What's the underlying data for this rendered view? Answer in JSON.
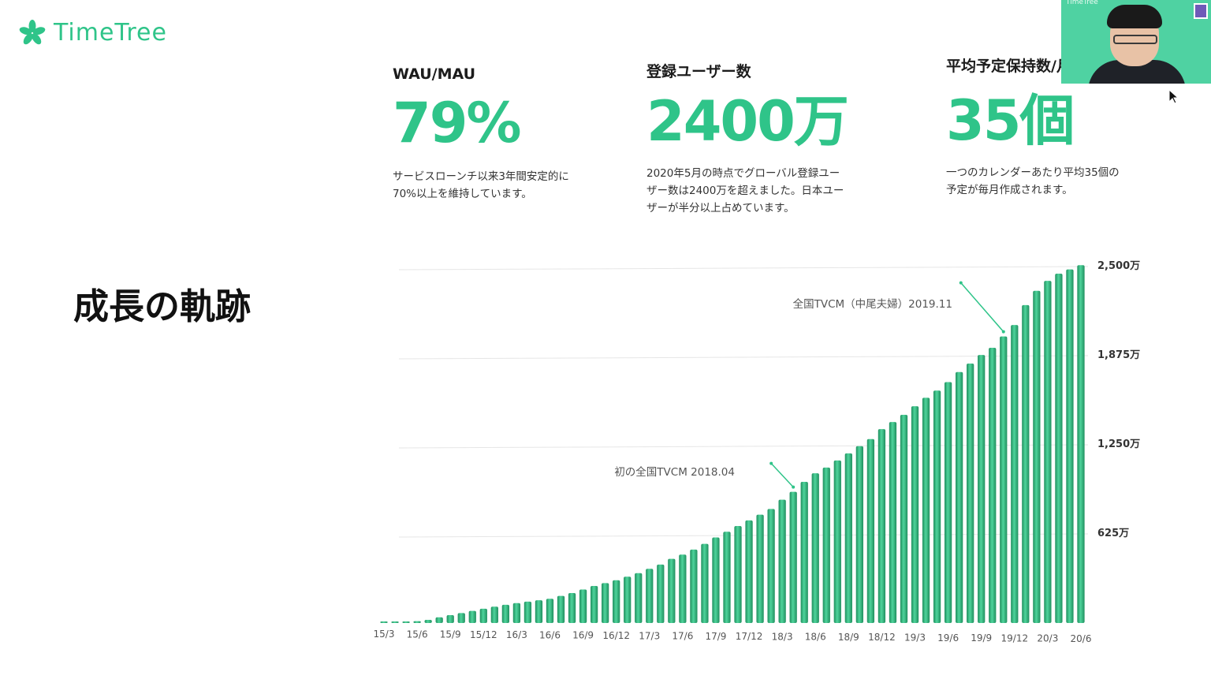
{
  "brand": {
    "logo_text": "TimeTree",
    "webcam_brand": "TimeTree"
  },
  "colors": {
    "accent": "#2fc489",
    "bar": "#2fbd82",
    "bar_dark": "#1f8f5e"
  },
  "stats": [
    {
      "label": "WAU/MAU",
      "value": "79%",
      "desc": "サービスローンチ以来3年間安定的に\n70%以上を維持しています。"
    },
    {
      "label": "登録ユーザー数",
      "value": "2400万",
      "desc": "2020年5月の時点でグローバル登録ユー\nザー数は2400万を超えました。日本ユー\nザーが半分以上占めています。"
    },
    {
      "label": "平均予定保持数/月",
      "value": "35個",
      "desc": "一つのカレンダーあたり平均35個の\n予定が毎月作成されます。"
    }
  ],
  "section_title": "成長の軌跡",
  "chart_data": {
    "type": "bar",
    "y_unit": "万",
    "ylim": [
      0,
      2500
    ],
    "y_ticks": [
      625,
      1250,
      1875,
      2500
    ],
    "y_tick_labels": [
      "625万",
      "1,250万",
      "1,875万",
      "2,500万"
    ],
    "grid": true,
    "categories": [
      "15/3",
      "15/4",
      "15/5",
      "15/6",
      "15/7",
      "15/8",
      "15/9",
      "15/10",
      "15/11",
      "15/12",
      "16/1",
      "16/2",
      "16/3",
      "16/4",
      "16/5",
      "16/6",
      "16/7",
      "16/8",
      "16/9",
      "16/10",
      "16/11",
      "16/12",
      "17/1",
      "17/2",
      "17/3",
      "17/4",
      "17/5",
      "17/6",
      "17/7",
      "17/8",
      "17/9",
      "17/10",
      "17/11",
      "17/12",
      "18/1",
      "18/2",
      "18/3",
      "18/4",
      "18/5",
      "18/6",
      "18/7",
      "18/8",
      "18/9",
      "18/10",
      "18/11",
      "18/12",
      "19/1",
      "19/2",
      "19/3",
      "19/4",
      "19/5",
      "19/6",
      "19/7",
      "19/8",
      "19/9",
      "19/10",
      "19/11",
      "19/12",
      "20/1",
      "20/2",
      "20/3",
      "20/4",
      "20/5",
      "20/6"
    ],
    "x_tick_labels": [
      "15/3",
      "15/6",
      "15/9",
      "15/12",
      "16/3",
      "16/6",
      "16/9",
      "16/12",
      "17/3",
      "17/6",
      "17/9",
      "17/12",
      "18/3",
      "18/6",
      "18/9",
      "18/12",
      "19/3",
      "19/6",
      "19/9",
      "19/12",
      "20/3",
      "20/6"
    ],
    "values": [
      5,
      8,
      10,
      13,
      22,
      40,
      55,
      70,
      85,
      100,
      115,
      128,
      140,
      150,
      160,
      170,
      190,
      210,
      235,
      260,
      280,
      300,
      325,
      350,
      380,
      410,
      450,
      480,
      515,
      555,
      600,
      640,
      680,
      720,
      760,
      800,
      865,
      920,
      990,
      1050,
      1090,
      1140,
      1190,
      1240,
      1290,
      1360,
      1410,
      1460,
      1520,
      1580,
      1630,
      1690,
      1760,
      1820,
      1880,
      1930,
      2010,
      2090,
      2230,
      2330,
      2400,
      2450,
      2480,
      2510
    ],
    "annotations": [
      {
        "text": "初の全国TVCM 2018.04",
        "category": "18/4"
      },
      {
        "text": "全国TVCM（中尾夫婦）2019.11",
        "category": "19/11"
      }
    ]
  }
}
